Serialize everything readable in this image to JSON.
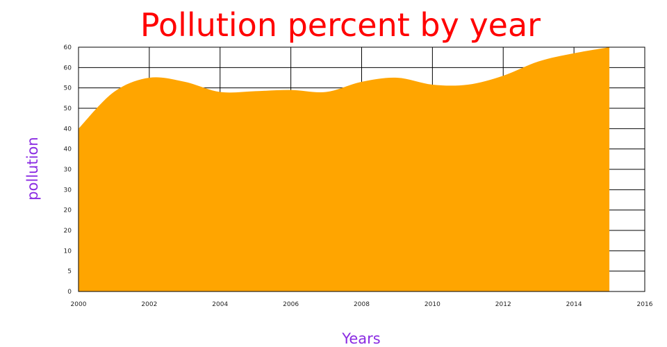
{
  "chart_data": {
    "type": "area",
    "title": "Pollution percent by year",
    "xlabel": "Years",
    "ylabel": "pollution",
    "x": [
      2000,
      2001,
      2002,
      2003,
      2004,
      2005,
      2006,
      2007,
      2008,
      2009,
      2010,
      2011,
      2012,
      2013,
      2014,
      2015
    ],
    "series": [
      {
        "values": [
          40,
          49,
          52.5,
          51.5,
          49,
          49.2,
          49.5,
          49,
          51.5,
          52.5,
          50.8,
          50.8,
          53,
          56.5,
          58.5,
          60
        ]
      }
    ],
    "xlim": [
      2000,
      2016
    ],
    "ylim": [
      0,
      60
    ],
    "x_ticks": [
      "2000",
      "2002",
      "2004",
      "2006",
      "2008",
      "2010",
      "2012",
      "2014",
      "2016"
    ],
    "y_ticks": [
      "0",
      "5",
      "10",
      "20",
      "20",
      "30",
      "30",
      "40",
      "40",
      "50",
      "50",
      "60",
      "60"
    ],
    "grid": true,
    "colors": {
      "fill": "#ffa500",
      "title": "#ff0000",
      "axis_label": "#8a2be2",
      "grid": "#000000"
    }
  }
}
